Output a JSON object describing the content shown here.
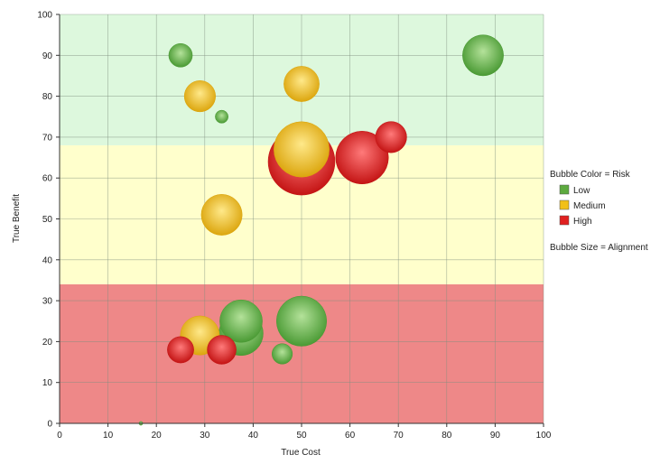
{
  "chart_data": {
    "type": "bubble",
    "title": "",
    "xlabel": "True Cost",
    "ylabel": "True Benefit",
    "xlim": [
      0,
      100
    ],
    "ylim": [
      0,
      100
    ],
    "x_ticks": [
      0,
      10,
      20,
      30,
      40,
      50,
      60,
      70,
      80,
      90,
      100
    ],
    "y_ticks": [
      0,
      10,
      20,
      30,
      40,
      50,
      60,
      70,
      80,
      90,
      100
    ],
    "grid": true,
    "bands": [
      {
        "from": 0,
        "to": 34,
        "color": "#ee8888"
      },
      {
        "from": 34,
        "to": 68,
        "color": "#ffffcc"
      },
      {
        "from": 68,
        "to": 100,
        "color": "#ddf8dd"
      }
    ],
    "legend": {
      "placement": "right",
      "color_title": "Bubble Color = Risk",
      "size_title": "Bubble Size = Alignment",
      "entries": [
        {
          "label": "Low",
          "color": "#5daa3f"
        },
        {
          "label": "Medium",
          "color": "#f2c018"
        },
        {
          "label": "High",
          "color": "#e02020"
        }
      ]
    },
    "risk_colors": {
      "Low": {
        "base": "#4a9a34",
        "light": "#b4e29a"
      },
      "Medium": {
        "base": "#dca60e",
        "light": "#ffe98a"
      },
      "High": {
        "base": "#c41414",
        "light": "#ff7a7a"
      }
    },
    "points": [
      {
        "x": 25,
        "y": 90,
        "size": 2.0,
        "risk": "Low"
      },
      {
        "x": 87.5,
        "y": 90,
        "size": 6.0,
        "risk": "Low"
      },
      {
        "x": 29,
        "y": 80,
        "size": 3.5,
        "risk": "Medium"
      },
      {
        "x": 50,
        "y": 83,
        "size": 4.5,
        "risk": "Medium"
      },
      {
        "x": 33.5,
        "y": 75,
        "size": 0.6,
        "risk": "Low"
      },
      {
        "x": 68.5,
        "y": 70,
        "size": 3.5,
        "risk": "High"
      },
      {
        "x": 50,
        "y": 64,
        "size": 16.0,
        "risk": "High"
      },
      {
        "x": 62.5,
        "y": 65,
        "size": 10.0,
        "risk": "High"
      },
      {
        "x": 50,
        "y": 67,
        "size": 11.0,
        "risk": "Medium"
      },
      {
        "x": 33.5,
        "y": 51,
        "size": 6.0,
        "risk": "Medium"
      },
      {
        "x": 37.5,
        "y": 22,
        "size": 7.0,
        "risk": "Low"
      },
      {
        "x": 29,
        "y": 21.5,
        "size": 5.5,
        "risk": "Medium"
      },
      {
        "x": 37.5,
        "y": 25,
        "size": 6.5,
        "risk": "Low"
      },
      {
        "x": 50,
        "y": 25,
        "size": 9.0,
        "risk": "Low"
      },
      {
        "x": 46,
        "y": 17,
        "size": 1.5,
        "risk": "Low"
      },
      {
        "x": 25,
        "y": 18,
        "size": 2.5,
        "risk": "High"
      },
      {
        "x": 33.5,
        "y": 18,
        "size": 3.0,
        "risk": "High"
      },
      {
        "x": 16.8,
        "y": 0,
        "size": 0.05,
        "risk": "Low"
      }
    ]
  }
}
